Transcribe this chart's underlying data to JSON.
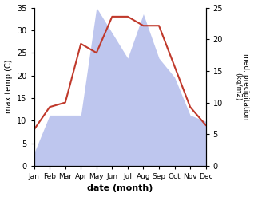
{
  "months": [
    "Jan",
    "Feb",
    "Mar",
    "Apr",
    "May",
    "Jun",
    "Jul",
    "Aug",
    "Sep",
    "Oct",
    "Nov",
    "Dec"
  ],
  "temp": [
    8,
    13,
    14,
    27,
    25,
    33,
    33,
    31,
    31,
    22,
    13,
    9
  ],
  "precip": [
    2,
    8,
    8,
    8,
    25,
    21,
    17,
    24,
    17,
    14,
    8,
    7
  ],
  "temp_color": "#c0392b",
  "precip_fill_color": "#b3bceb",
  "left_ylabel": "max temp (C)",
  "right_ylabel": "med. precipitation\n(kg/m2)",
  "xlabel": "date (month)",
  "ylim_left": [
    0,
    35
  ],
  "ylim_right": [
    0,
    25
  ],
  "yticks_left": [
    0,
    5,
    10,
    15,
    20,
    25,
    30,
    35
  ],
  "yticks_right": [
    0,
    5,
    10,
    15,
    20,
    25
  ],
  "figsize": [
    3.18,
    2.47
  ],
  "dpi": 100
}
